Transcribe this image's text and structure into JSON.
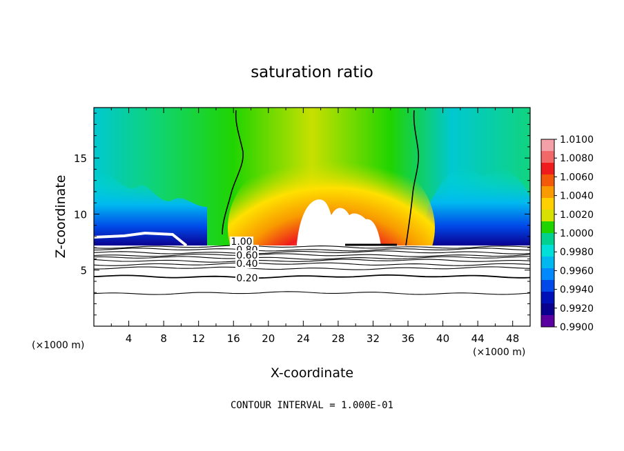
{
  "chart_data": {
    "type": "heatmap",
    "title": "saturation ratio",
    "xlabel": "X-coordinate",
    "ylabel": "Z-coordinate",
    "x_unit_label": "(×1000 m)",
    "x_unit_label_right": "(×1000 m)",
    "footer": "CONTOUR INTERVAL = 1.000E-01",
    "xlim": [
      0,
      50
    ],
    "ylim": [
      0,
      19.5
    ],
    "x_ticks": [
      4,
      8,
      12,
      16,
      20,
      24,
      28,
      32,
      36,
      40,
      44,
      48
    ],
    "x_tick_labels": [
      "4",
      "8",
      "12",
      "16",
      "20",
      "24",
      "28",
      "32",
      "36",
      "40",
      "44",
      "48"
    ],
    "y_ticks": [
      5,
      10,
      15
    ],
    "y_tick_labels": [
      "5",
      "10",
      "15"
    ],
    "colorbar": {
      "labels": [
        "1.0100",
        "1.0080",
        "1.0060",
        "1.0040",
        "1.0020",
        "1.0000",
        "0.9980",
        "0.9960",
        "0.9940",
        "0.9920",
        "0.9900"
      ],
      "colors": [
        "#f4a0a8",
        "#f06868",
        "#ee1c1c",
        "#f25a0a",
        "#f89a00",
        "#ffd000",
        "#d8e000",
        "#20d400",
        "#00d090",
        "#00e0d8",
        "#00b8f0",
        "#0088ff",
        "#0048e8",
        "#0010b8",
        "#0a0090",
        "#5a00a0"
      ]
    },
    "contours": [
      {
        "level": 1.0,
        "label": "1.00"
      },
      {
        "level": 0.8,
        "label": "0.80"
      },
      {
        "level": 0.6,
        "label": "0.60"
      },
      {
        "level": 0.4,
        "label": "0.40"
      },
      {
        "level": 0.2,
        "label": "0.20"
      }
    ],
    "contour_label_texts": [
      "1.00",
      "0.80",
      "0.60",
      "0.40",
      "0.20"
    ]
  }
}
